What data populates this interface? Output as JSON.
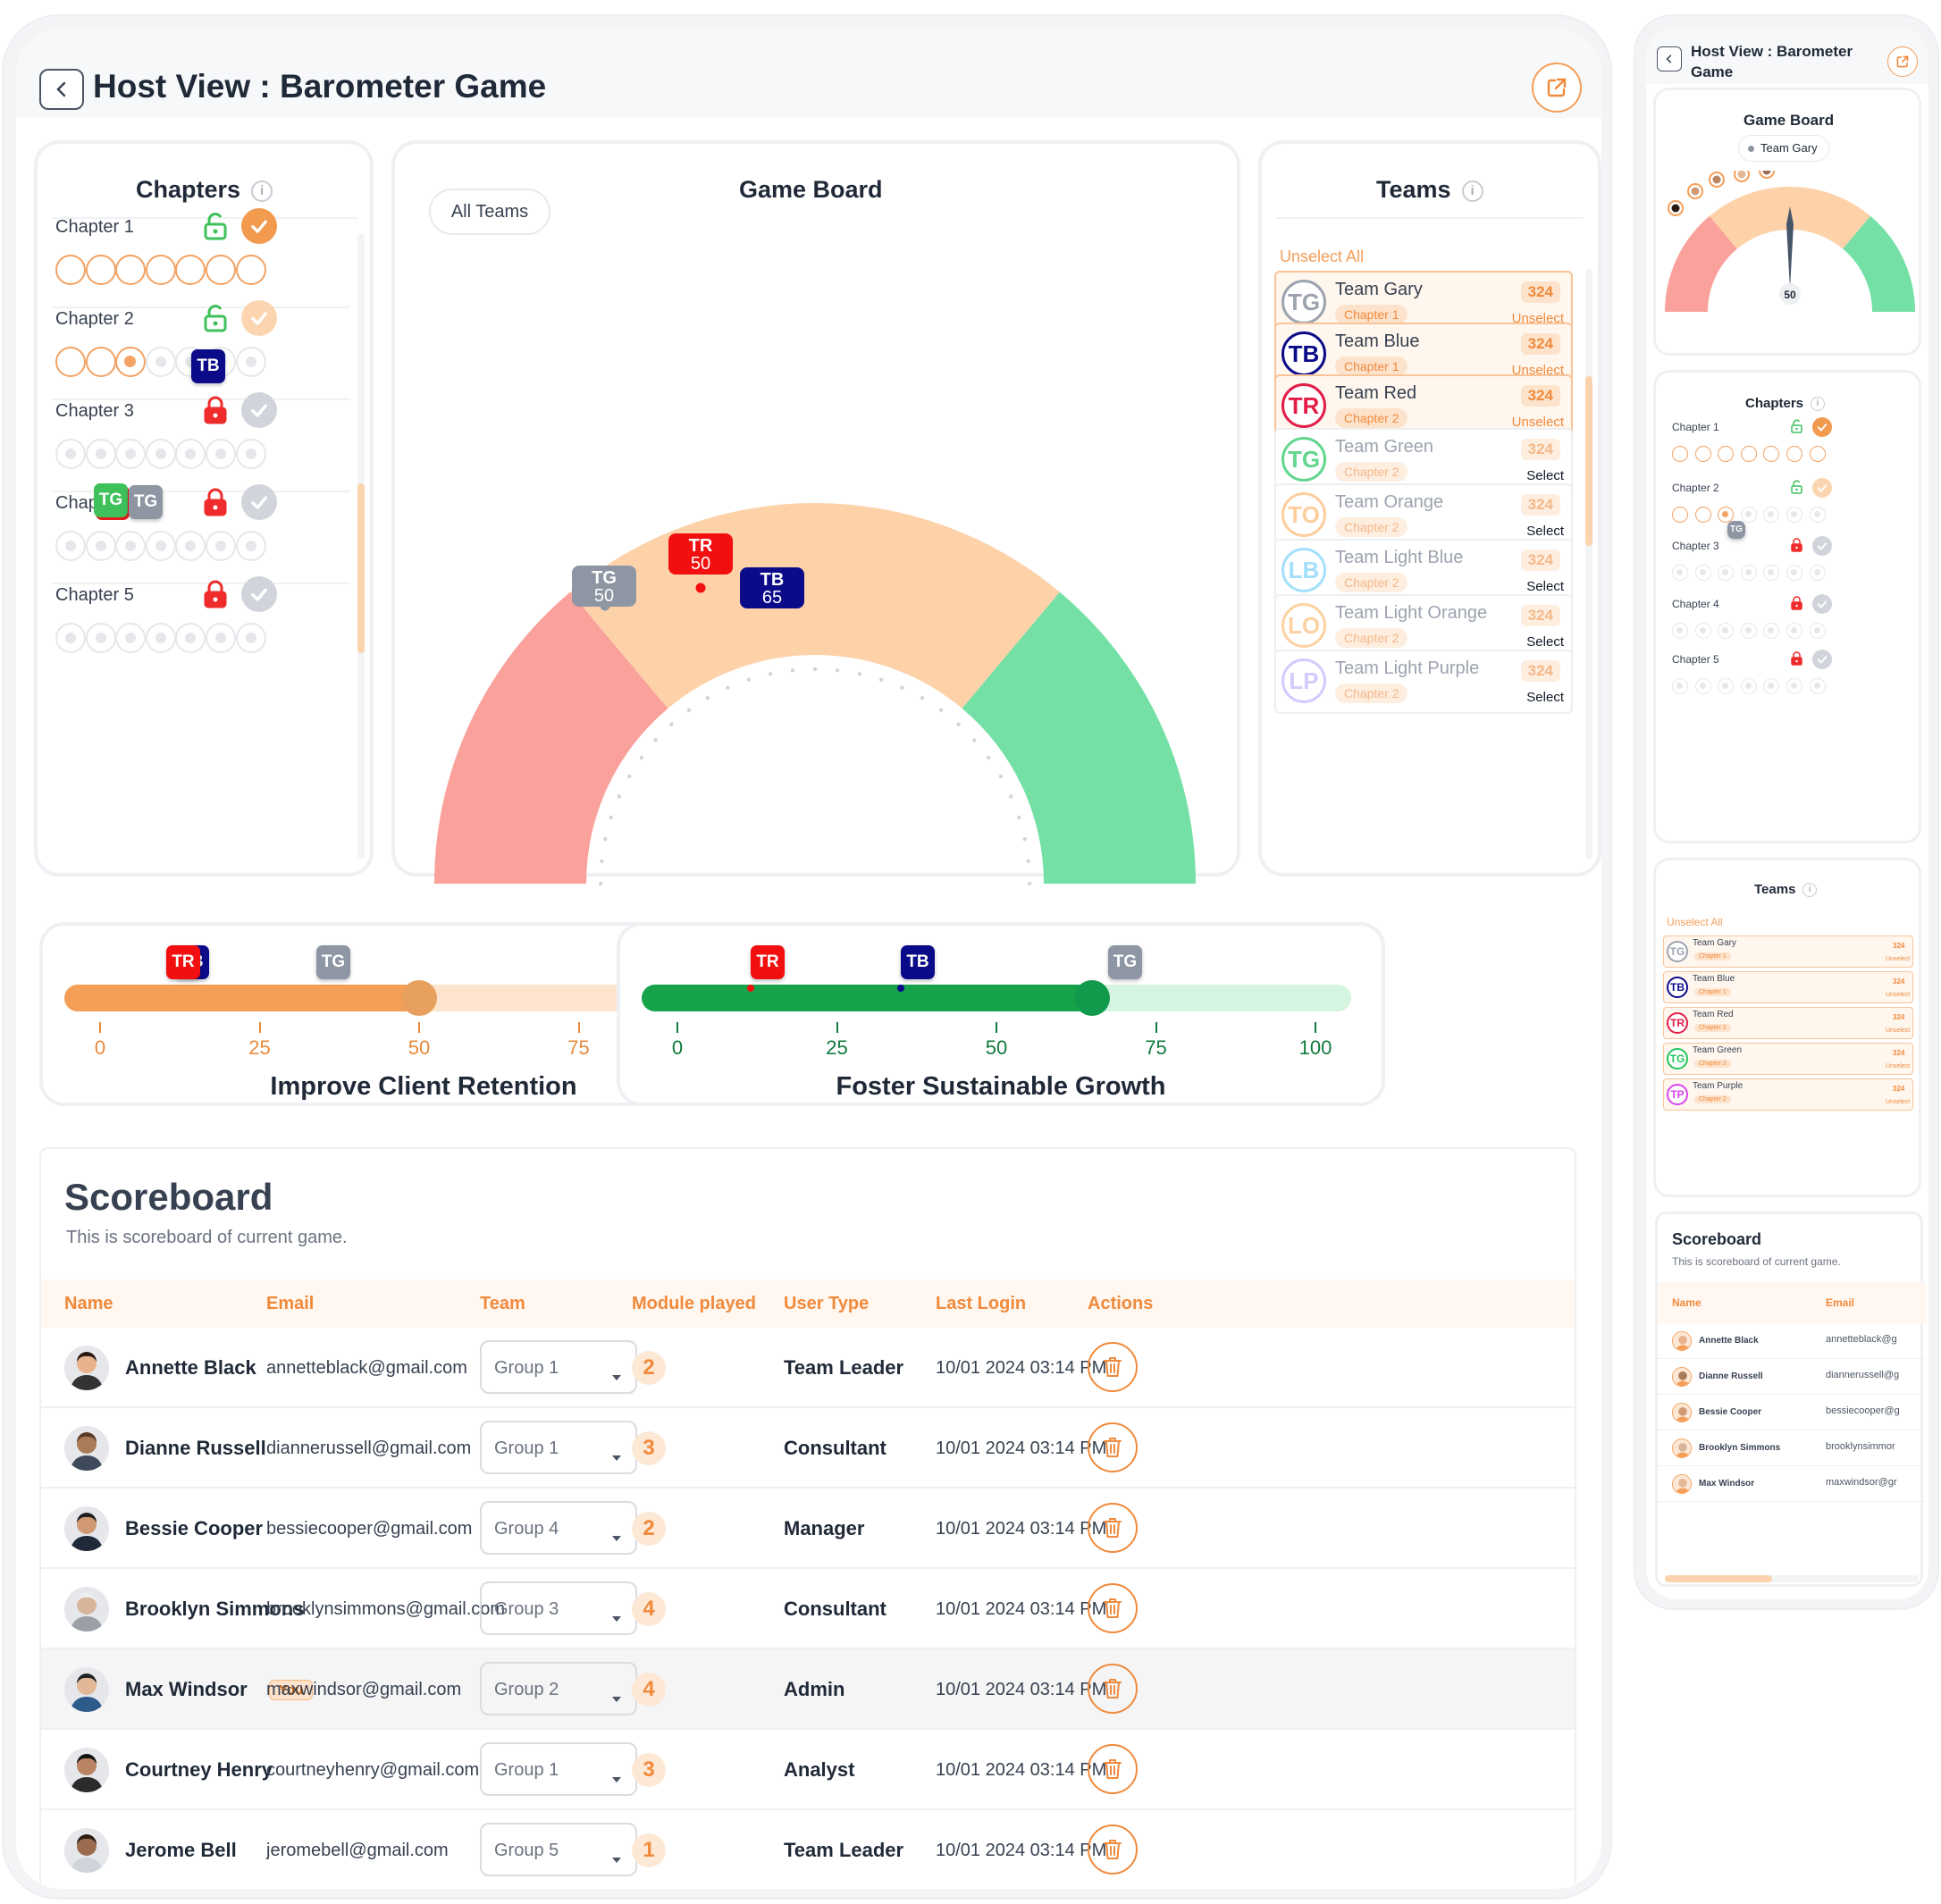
{
  "header": {
    "title": "Host View : Barometer Game"
  },
  "chapters": {
    "title": "Chapters",
    "items": [
      {
        "label": "Chapter 1",
        "locked": false,
        "done": true
      },
      {
        "label": "Chapter 2",
        "locked": false,
        "done": true
      },
      {
        "label": "Chapter 3",
        "locked": true,
        "done": false
      },
      {
        "label": "Chapter 4",
        "locked": true,
        "done": false
      },
      {
        "label": "Chapter 5",
        "locked": true,
        "done": false
      }
    ]
  },
  "board": {
    "title": "Game Board",
    "filter": "All Teams",
    "markers": [
      {
        "code": "TG",
        "value": "50",
        "color": "#8e96a4"
      },
      {
        "code": "TR",
        "value": "50",
        "color": "#f20f0f"
      },
      {
        "code": "TB",
        "value": "65",
        "color": "#0b0b8a"
      }
    ]
  },
  "teams": {
    "title": "Teams",
    "unselect_all": "Unselect All",
    "list": [
      {
        "code": "TG",
        "name": "Team Gary",
        "chapter": "Chapter 1",
        "score": "324",
        "action": "Unselect",
        "color": "#9ca3af",
        "selected": true
      },
      {
        "code": "TB",
        "name": "Team Blue",
        "chapter": "Chapter 1",
        "score": "324",
        "action": "Unselect",
        "color": "#0b0b8a",
        "selected": true
      },
      {
        "code": "TR",
        "name": "Team Red",
        "chapter": "Chapter 2",
        "score": "324",
        "action": "Unselect",
        "color": "#e11d48",
        "selected": true
      },
      {
        "code": "TG",
        "name": "Team Green",
        "chapter": "Chapter 2",
        "score": "324",
        "action": "Select",
        "color": "#22c55e",
        "selected": false
      },
      {
        "code": "TO",
        "name": "Team Orange",
        "chapter": "Chapter 2",
        "score": "324",
        "action": "Select",
        "color": "#fdba74",
        "selected": false
      },
      {
        "code": "LB",
        "name": "Team Light Blue",
        "chapter": "Chapter 2",
        "score": "324",
        "action": "Select",
        "color": "#7dd3fc",
        "selected": false
      },
      {
        "code": "LO",
        "name": "Team Light Orange",
        "chapter": "Chapter 2",
        "score": "324",
        "action": "Select",
        "color": "#fbbf7a",
        "selected": false
      },
      {
        "code": "LP",
        "name": "Team Light Purple",
        "chapter": "Chapter 2",
        "score": "324",
        "action": "Select",
        "color": "#c4b5fd",
        "selected": false
      }
    ]
  },
  "sliders": [
    {
      "label": "Improve Client Retention",
      "value": 50,
      "ticks": [
        "0",
        "25",
        "50",
        "75",
        "100"
      ],
      "accent": "#f59e57"
    },
    {
      "label": "Foster Sustainable Growth",
      "value": 65,
      "ticks": [
        "0",
        "25",
        "50",
        "75",
        "100"
      ],
      "accent": "#16a34a"
    }
  ],
  "slider_badges": {
    "tr": "TR",
    "tb": "TB",
    "tg": "TG"
  },
  "scoreboard": {
    "title": "Scoreboard",
    "subtitle": "This is scoreboard of current game.",
    "columns": [
      "Name",
      "Email",
      "Team",
      "Module played",
      "User Type",
      "Last Login",
      "Actions"
    ],
    "you_badge": "You",
    "rows": [
      {
        "name": "Annette Black",
        "email": "annetteblack@gmail.com",
        "team": "Group 1",
        "modules": "2",
        "type": "Team Leader",
        "login": "10/01 2024 03:14 PM"
      },
      {
        "name": "Dianne Russell",
        "email": "diannerussell@gmail.com",
        "team": "Group 1",
        "modules": "3",
        "type": "Consultant",
        "login": "10/01 2024 03:14 PM"
      },
      {
        "name": "Bessie Cooper",
        "email": "bessiecooper@gmail.com",
        "team": "Group 4",
        "modules": "2",
        "type": "Manager",
        "login": "10/01 2024 03:14 PM"
      },
      {
        "name": "Brooklyn Simmons",
        "email": "brooklynsimmons@gmail.com",
        "team": "Group 3",
        "modules": "4",
        "type": "Consultant",
        "login": "10/01 2024 03:14 PM"
      },
      {
        "name": "Max Windsor",
        "email": "maxwindsor@gmail.com",
        "team": "Group 2",
        "modules": "4",
        "type": "Admin",
        "login": "10/01 2024 03:14 PM"
      },
      {
        "name": "Courtney Henry",
        "email": "courtneyhenry@gmail.com",
        "team": "Group 1",
        "modules": "3",
        "type": "Analyst",
        "login": "10/01 2024 03:14 PM"
      },
      {
        "name": "Jerome Bell",
        "email": "jeromebell@gmail.com",
        "team": "Group 5",
        "modules": "1",
        "type": "Team Leader",
        "login": "10/01 2024 03:14 PM"
      }
    ]
  },
  "mobile": {
    "title_line1": "Host View : Barometer",
    "title_line2": "Game",
    "board_title": "Game Board",
    "team_filter": "Team Gary",
    "needle_value": "50",
    "chapters_title": "Chapters",
    "badge_tg": "TG",
    "teams_title": "Teams",
    "unselect_all": "Unselect All",
    "teams": [
      {
        "code": "TG",
        "name": "Team Gary",
        "chapter": "Chapter 1",
        "score": "324",
        "action": "Unselect",
        "color": "#9ca3af"
      },
      {
        "code": "TB",
        "name": "Team Blue",
        "chapter": "Chapter 1",
        "score": "324",
        "action": "Unselect",
        "color": "#0b0b8a"
      },
      {
        "code": "TR",
        "name": "Team Red",
        "chapter": "Chapter 2",
        "score": "324",
        "action": "Unselect",
        "color": "#e11d48"
      },
      {
        "code": "TG",
        "name": "Team Green",
        "chapter": "Chapter 2",
        "score": "324",
        "action": "Unselect",
        "color": "#22c55e"
      },
      {
        "code": "TP",
        "name": "Team Purple",
        "chapter": "Chapter 2",
        "score": "324",
        "action": "Unselect",
        "color": "#d946ef"
      }
    ],
    "scoreboard_title": "Scoreboard",
    "scoreboard_subtitle": "This is scoreboard of current game.",
    "col_name": "Name",
    "col_email": "Email",
    "rows": [
      {
        "name": "Annette Black",
        "email": "annetteblack@g"
      },
      {
        "name": "Dianne Russell",
        "email": "diannerussell@g"
      },
      {
        "name": "Bessie Cooper",
        "email": "bessiecooper@g"
      },
      {
        "name": "Brooklyn Simmons",
        "email": "brooklynsimmor"
      },
      {
        "name": "Max Windsor",
        "email": "maxwindsor@gr"
      }
    ]
  }
}
